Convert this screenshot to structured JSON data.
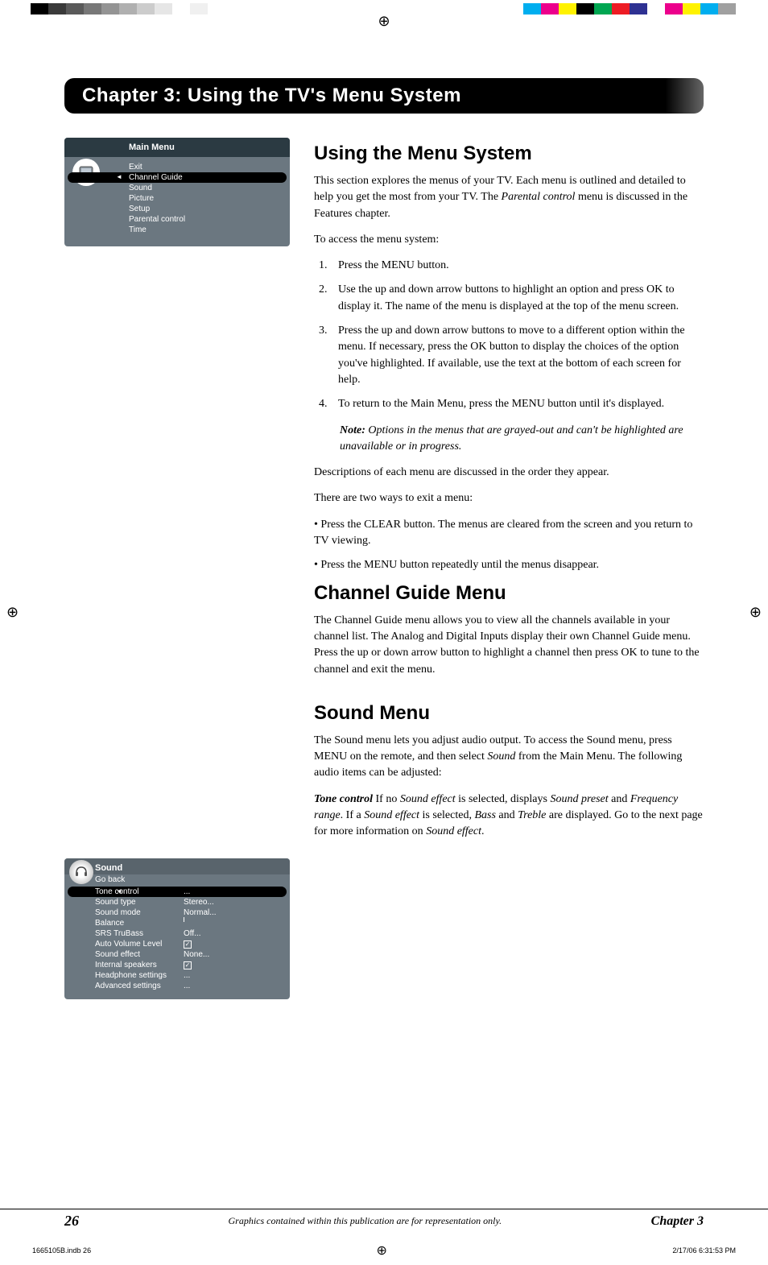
{
  "colorBarsLeft": [
    "#000000",
    "#3a3a3a",
    "#5a5a5a",
    "#787878",
    "#949494",
    "#b0b0b0",
    "#cccccc",
    "#e6e6e6",
    "#ffffff",
    "#f0f0f0"
  ],
  "colorBarsRight": [
    "#00aeef",
    "#ec008c",
    "#fff200",
    "#000000",
    "#00a651",
    "#ed1c24",
    "#2e3192",
    "#ffffff",
    "#ec008c",
    "#fff200",
    "#00aeef",
    "#a0a0a0"
  ],
  "chapterBanner": "Chapter 3: Using the TV's Menu System",
  "mainMenu": {
    "title": "Main Menu",
    "items": [
      "Exit",
      "Channel Guide",
      "Sound",
      "Picture",
      "Setup",
      "Parental control",
      "Time"
    ],
    "highlightedIndex": 1
  },
  "soundMenu": {
    "title": "Sound",
    "goBack": "Go back",
    "rows": [
      {
        "label": "Tone control",
        "value": "...",
        "highlighted": true
      },
      {
        "label": "Sound type",
        "value": "Stereo..."
      },
      {
        "label": "Sound mode",
        "value": "Normal..."
      },
      {
        "label": "Balance",
        "value": "",
        "slider": true
      },
      {
        "label": "SRS TruBass",
        "value": "Off..."
      },
      {
        "label": "Auto Volume Level",
        "value": "",
        "checkbox": true
      },
      {
        "label": "Sound effect",
        "value": "None..."
      },
      {
        "label": "Internal speakers",
        "value": "",
        "checkbox": true
      },
      {
        "label": "Headphone settings",
        "value": "..."
      },
      {
        "label": "Advanced settings",
        "value": "..."
      }
    ]
  },
  "content": {
    "h1": "Using the Menu System",
    "p1": "This section explores the menus of your TV. Each menu is outlined and detailed to help you get the most from your TV. The ",
    "p1_i": "Parental control",
    "p1_b": " menu is discussed in the Features chapter.",
    "p2": "To access the menu system:",
    "steps": [
      "Press the MENU button.",
      "Use the up and down arrow buttons to highlight an option and press OK to display it. The name of the menu is displayed at the top of the menu screen.",
      "Press the up and down arrow buttons to move to a different option within the menu. If necessary, press the OK button to display the choices of the option you've highlighted. If available, use the text at the bottom of each screen for help.",
      "To return to the Main Menu, press the MENU button until it's displayed."
    ],
    "noteLabel": "Note:",
    "note": " Options in the menus that are grayed-out and can't be highlighted are unavailable or in progress.",
    "p3": "Descriptions of each menu are discussed in the order they appear.",
    "p4": "There are two ways to exit a menu:",
    "b1": "• Press the CLEAR button. The menus are cleared from the screen and you return to TV viewing.",
    "b2": "• Press the MENU button repeatedly until the menus disappear.",
    "h2": "Channel Guide Menu",
    "p5": "The Channel Guide menu allows you to view all the channels available in your channel list. The Analog and Digital Inputs display their own Channel Guide menu. Press the up or down arrow button to highlight a channel then press OK to tune to the channel and exit the menu.",
    "h3": "Sound Menu",
    "p6a": "The Sound menu lets you adjust audio output. To access the Sound menu, press MENU on the remote, and then select ",
    "p6i": "Sound",
    "p6b": " from the Main Menu. The following audio items can be adjusted:",
    "p7_strong": "Tone control",
    "p7a": "   If no ",
    "p7i1": "Sound effect",
    "p7b": " is selected, displays ",
    "p7i2": "Sound preset",
    "p7c": " and ",
    "p7i3": "Frequency range",
    "p7d": ". If a ",
    "p7i4": "Sound effect",
    "p7e": " is selected, ",
    "p7i5": "Bass",
    "p7f": " and ",
    "p7i6": "Treble",
    "p7g": " are displayed. Go to the next page for more information on ",
    "p7i7": "Sound effect",
    "p7h": "."
  },
  "footer": {
    "page": "26",
    "mid": "Graphics contained within this publication are for representation only.",
    "chapter": "Chapter 3"
  },
  "printLine": {
    "left": "1665105B.indb   26",
    "right": "2/17/06   6:31:53 PM"
  }
}
